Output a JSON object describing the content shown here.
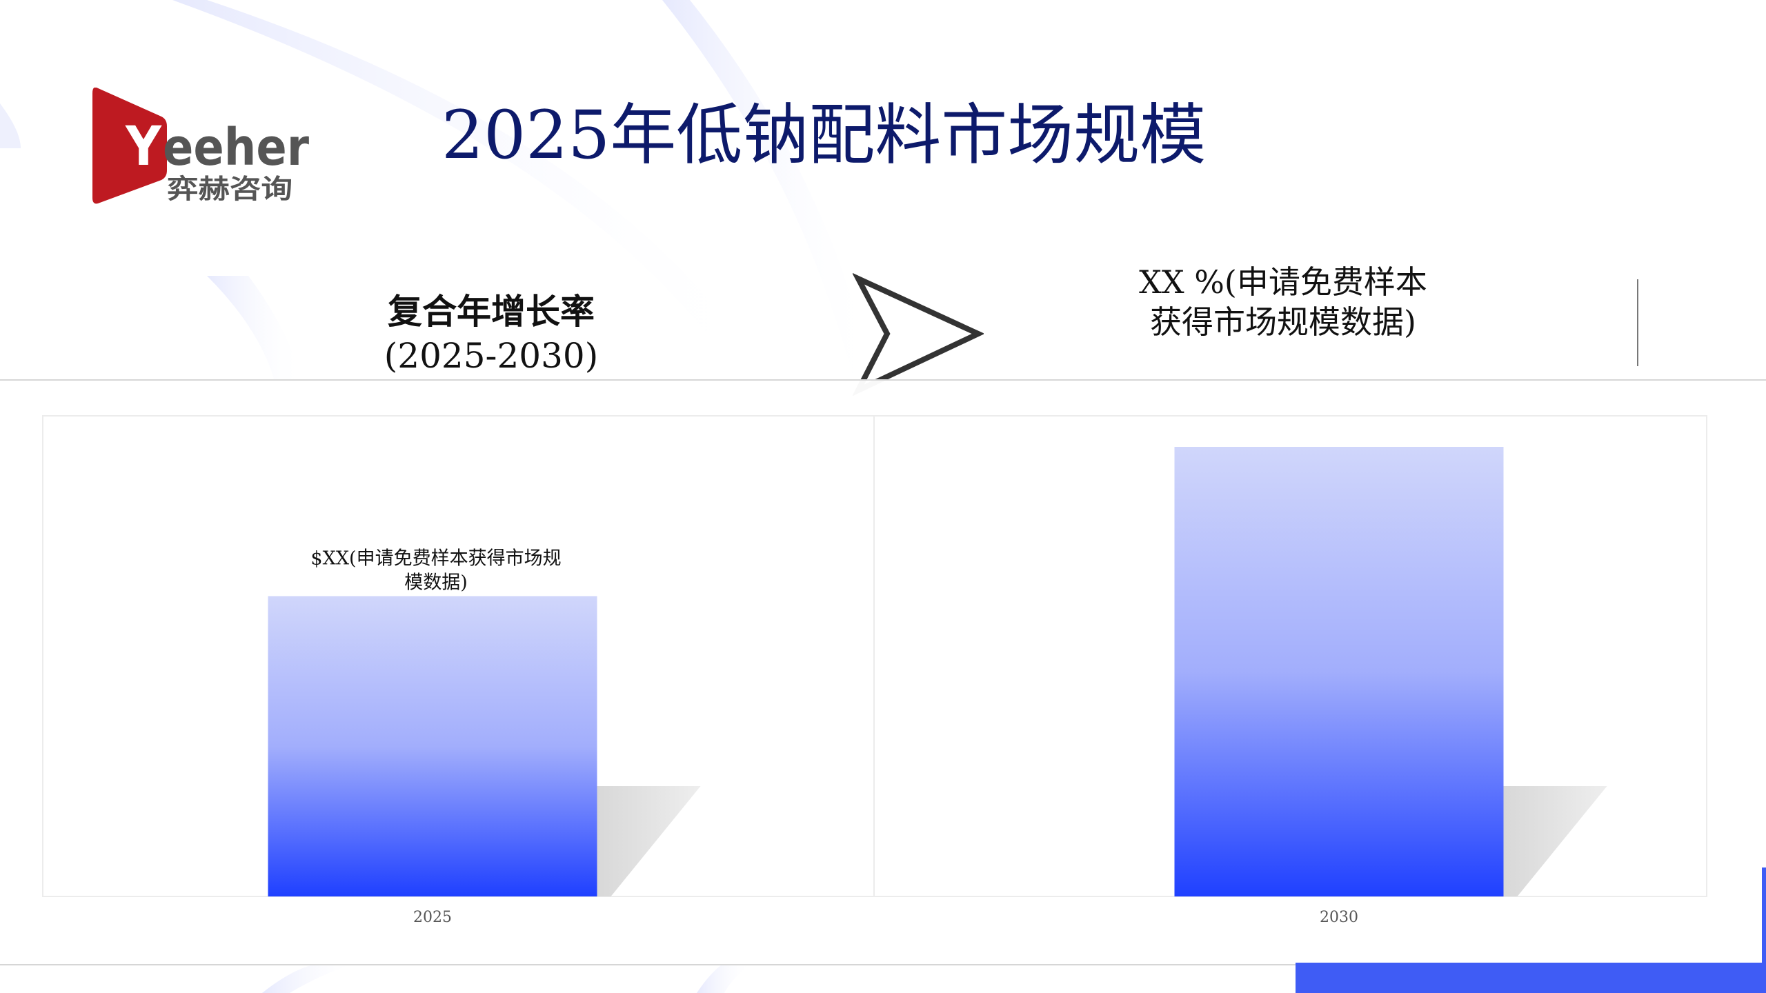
{
  "header": {
    "title": "2025年低钠配料市场规模"
  },
  "logo": {
    "brand": "Yeeher",
    "subtitle": "弈赫咨询",
    "color": "#be1a21"
  },
  "cagr": {
    "label": "复合年增长率",
    "period": "(2025-2030)"
  },
  "cagr_value": {
    "line1": "XX %(申请免费样本",
    "line2": "获得市场规模数据)"
  },
  "colors": {
    "title": "#0d1a6b",
    "bar_top": "#d0d6fb",
    "bar_bottom": "#1f40ff",
    "accent": "#3f5cf5"
  },
  "chart_data": {
    "type": "bar",
    "categories": [
      "2025",
      "2030"
    ],
    "values": [
      66.8,
      100
    ],
    "ylim": [
      0,
      100
    ],
    "data_labels": [
      "$XX(申请免费样本获得市场规模数据)",
      ""
    ],
    "data_label_lines": [
      "$XX(申请免费样本获得市场规",
      "模数据)"
    ],
    "grid": false,
    "title": "",
    "xlabel": "",
    "ylabel": ""
  }
}
